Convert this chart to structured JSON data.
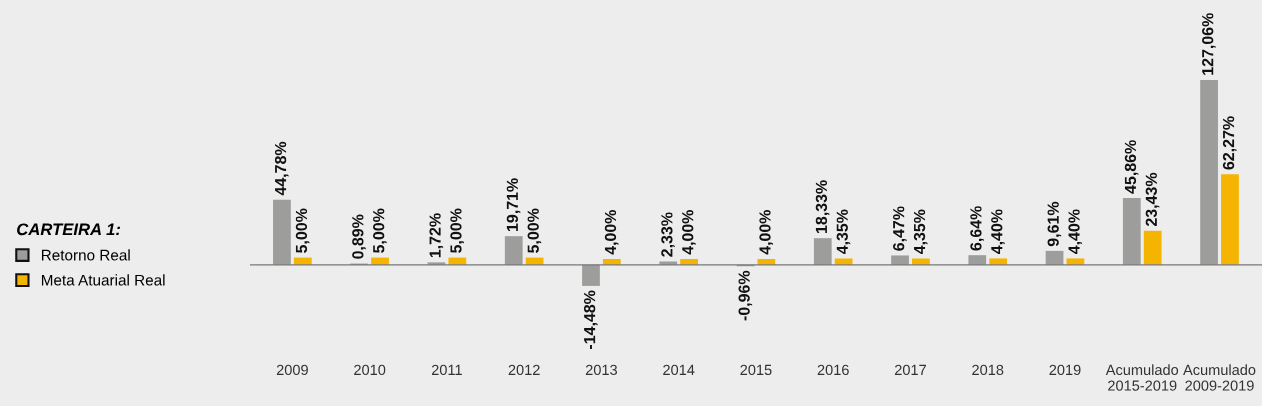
{
  "chart_data": {
    "type": "bar",
    "categories": [
      "2009",
      "2010",
      "2011",
      "2012",
      "2013",
      "2014",
      "2015",
      "2016",
      "2017",
      "2018",
      "2019",
      "Acumulado\n2015-2019",
      "Acumulado\n2009-2019"
    ],
    "legend_title": "CARTEIRA 1:",
    "series": [
      {
        "name": "Retorno Real",
        "color": "#9d9d9c",
        "values": [
          44.78,
          0.89,
          1.72,
          19.71,
          -14.48,
          2.33,
          -0.96,
          18.33,
          6.47,
          6.64,
          9.61,
          45.86,
          127.06
        ],
        "value_labels": [
          "44,78%",
          "0,89%",
          "1,72%",
          "19,71%",
          "-14,48%",
          "2,33%",
          "-0,96%",
          "18,33%",
          "6,47%",
          "6,64%",
          "9,61%",
          "45,86%",
          "127,06%"
        ]
      },
      {
        "name": "Meta Atuarial Real",
        "color": "#f5b400",
        "values": [
          5.0,
          5.0,
          5.0,
          5.0,
          4.0,
          4.0,
          4.0,
          4.35,
          4.35,
          4.4,
          4.4,
          23.43,
          62.27
        ],
        "value_labels": [
          "5,00%",
          "5,00%",
          "5,00%",
          "5,00%",
          "4,00%",
          "4,00%",
          "4,00%",
          "4,35%",
          "4,35%",
          "4,40%",
          "4,40%",
          "23,43%",
          "62,27%"
        ]
      }
    ],
    "ylim": [
      -97,
      182
    ],
    "tick_labels": "x",
    "legend": "left",
    "grid": false
  }
}
